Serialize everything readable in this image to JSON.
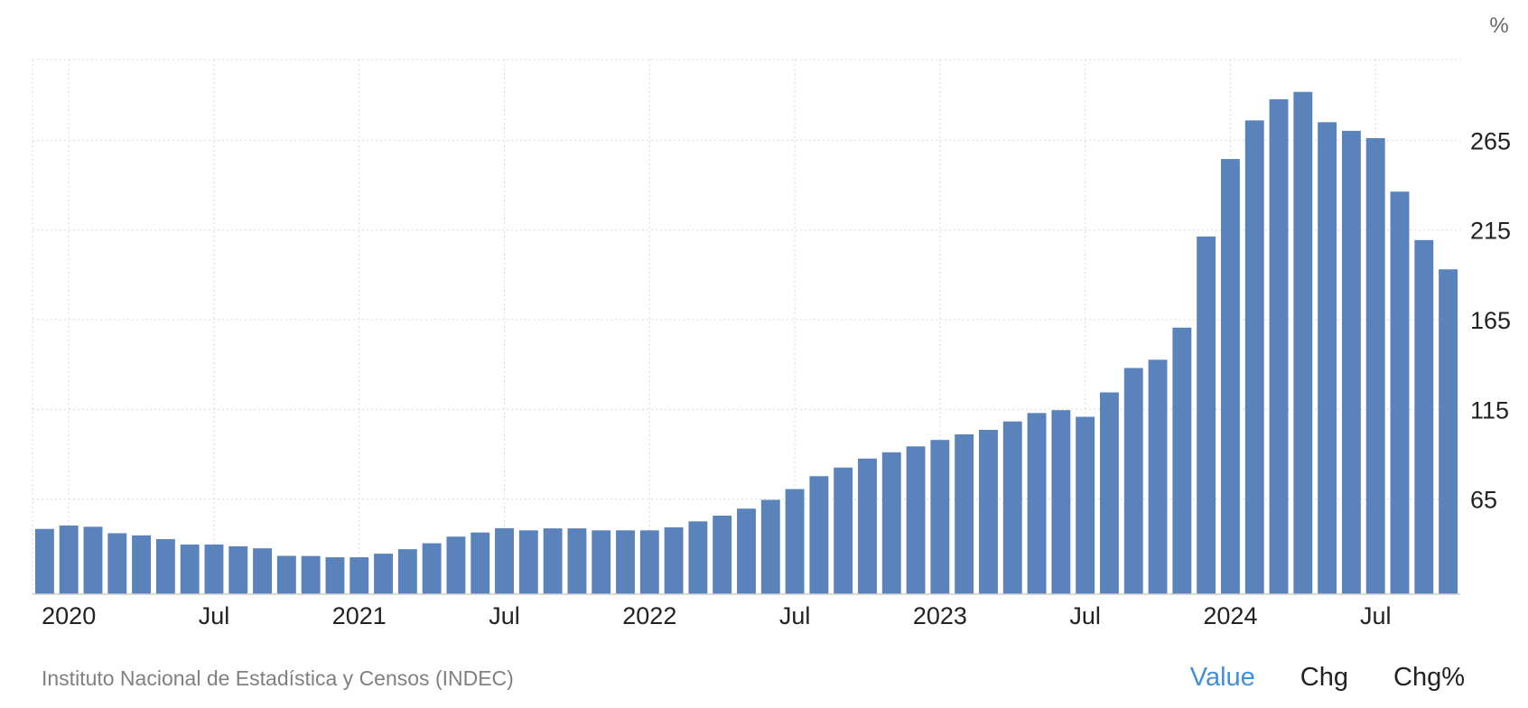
{
  "chart_data": {
    "type": "bar",
    "unit": "%",
    "color": "#5b83bb",
    "grid": true,
    "y_axis_position": "right",
    "ylim": [
      12,
      310
    ],
    "yticks": [
      65,
      115,
      165,
      215,
      265
    ],
    "xtick_labels": [
      {
        "label": "2020",
        "period": "2020-01"
      },
      {
        "label": "Jul",
        "period": "2020-07"
      },
      {
        "label": "2021",
        "period": "2021-01"
      },
      {
        "label": "Jul",
        "period": "2021-07"
      },
      {
        "label": "2022",
        "period": "2022-01"
      },
      {
        "label": "Jul",
        "period": "2022-07"
      },
      {
        "label": "2023",
        "period": "2023-01"
      },
      {
        "label": "Jul",
        "period": "2023-07"
      },
      {
        "label": "2024",
        "period": "2024-01"
      },
      {
        "label": "Jul",
        "period": "2024-07"
      }
    ],
    "categories": [
      "2019-12",
      "2020-01",
      "2020-02",
      "2020-03",
      "2020-04",
      "2020-05",
      "2020-06",
      "2020-07",
      "2020-08",
      "2020-09",
      "2020-10",
      "2020-11",
      "2020-12",
      "2021-01",
      "2021-02",
      "2021-03",
      "2021-04",
      "2021-05",
      "2021-06",
      "2021-07",
      "2021-08",
      "2021-09",
      "2021-10",
      "2021-11",
      "2021-12",
      "2022-01",
      "2022-02",
      "2022-03",
      "2022-04",
      "2022-05",
      "2022-06",
      "2022-07",
      "2022-08",
      "2022-09",
      "2022-10",
      "2022-11",
      "2022-12",
      "2023-01",
      "2023-02",
      "2023-03",
      "2023-04",
      "2023-05",
      "2023-06",
      "2023-07",
      "2023-08",
      "2023-09",
      "2023-10",
      "2023-11",
      "2023-12",
      "2024-01",
      "2024-02",
      "2024-03",
      "2024-04",
      "2024-05",
      "2024-06",
      "2024-07",
      "2024-08",
      "2024-09",
      "2024-10"
    ],
    "values": [
      48.4,
      50.3,
      49.6,
      46.0,
      44.8,
      42.7,
      39.7,
      39.7,
      38.7,
      37.6,
      33.4,
      33.3,
      32.6,
      32.6,
      34.6,
      37.1,
      40.4,
      44.1,
      46.4,
      48.8,
      47.6,
      48.7,
      48.7,
      47.6,
      47.6,
      47.6,
      49.3,
      52.6,
      55.8,
      59.7,
      64.6,
      70.6,
      77.8,
      82.6,
      87.6,
      91.1,
      94.4,
      98.0,
      101.1,
      103.6,
      108.3,
      113.0,
      114.6,
      110.9,
      124.5,
      138.1,
      142.7,
      160.6,
      211.4,
      254.6,
      276.1,
      287.9,
      292.0,
      275.1,
      270.3,
      266.2,
      236.4,
      209.4,
      193.1
    ]
  },
  "footer": {
    "source": "Instituto Nacional de Estadística y Censos (INDEC)",
    "tabs": [
      {
        "label": "Value",
        "active": true
      },
      {
        "label": "Chg",
        "active": false
      },
      {
        "label": "Chg%",
        "active": false
      }
    ]
  }
}
